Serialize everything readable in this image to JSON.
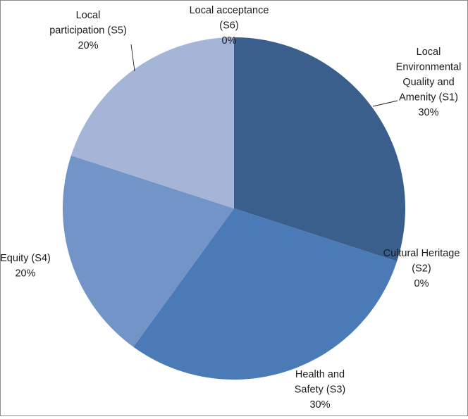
{
  "chart_data": {
    "type": "pie",
    "title": "",
    "slices": [
      {
        "label_lines": [
          "Local",
          "Environmental",
          "Quality and",
          "Amenity (S1)"
        ],
        "pct_label": "30%",
        "value": 30,
        "color": "#3b5f8c"
      },
      {
        "label_lines": [
          "Cultural Heritage",
          "(S2)"
        ],
        "pct_label": "0%",
        "value": 0,
        "color": "#3f6fa8"
      },
      {
        "label_lines": [
          "Health and",
          "Safety (S3)"
        ],
        "pct_label": "30%",
        "value": 30,
        "color": "#4a7bb7"
      },
      {
        "label_lines": [
          "Equity (S4)"
        ],
        "pct_label": "20%",
        "value": 20,
        "color": "#7294c6"
      },
      {
        "label_lines": [
          "Local",
          "participation (S5)"
        ],
        "pct_label": "20%",
        "value": 20,
        "color": "#a4b5d7"
      },
      {
        "label_lines": [
          "Local acceptance",
          "(S6)"
        ],
        "pct_label": "0%",
        "value": 0,
        "color": "#c5d0e6"
      }
    ],
    "legend": "none",
    "data_labels": "outside with leader lines"
  }
}
